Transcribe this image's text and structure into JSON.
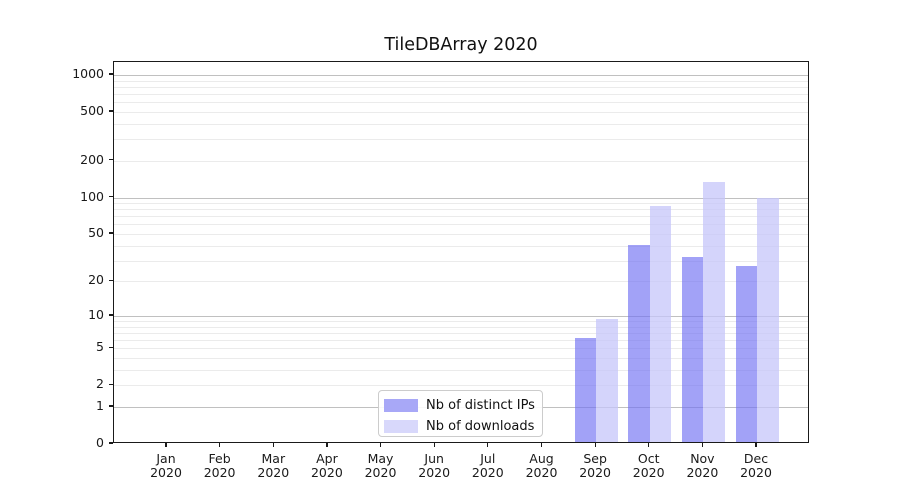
{
  "figure": {
    "title": "TileDBArray 2020"
  },
  "chart_data": {
    "type": "bar",
    "title": "TileDBArray 2020",
    "xlabel": "",
    "ylabel": "",
    "categories": [
      "Jan",
      "Feb",
      "Mar",
      "Apr",
      "May",
      "Jun",
      "Jul",
      "Aug",
      "Sep",
      "Oct",
      "Nov",
      "Dec"
    ],
    "category_year": "2020",
    "series": [
      {
        "name": "Nb of distinct IPs",
        "color_solid": "#a8a8f7",
        "color_rgba": "rgba(112,112,243,0.65)",
        "values": [
          0,
          0,
          0,
          0,
          0,
          0,
          0,
          0,
          6,
          39,
          31,
          26
        ]
      },
      {
        "name": "Nb of downloads",
        "color_solid": "#d8d8fb",
        "color_rgba": "rgba(198,198,250,0.75)",
        "values": [
          0,
          0,
          0,
          0,
          0,
          0,
          0,
          0,
          9,
          82,
          129,
          95
        ]
      }
    ],
    "yscale": "log1p",
    "ylim": [
      0,
      1276
    ],
    "yticks": [
      0,
      1,
      2,
      5,
      10,
      20,
      50,
      100,
      200,
      500,
      1000
    ],
    "grid": {
      "orientation": "horizontal",
      "major_lines": [
        1,
        10,
        100,
        1000
      ],
      "minor_base": [
        2,
        3,
        4,
        5,
        6,
        7,
        8,
        9
      ],
      "minor_decades": [
        1,
        10,
        100
      ]
    },
    "legend": {
      "position": "lower-center-left",
      "entries": [
        "Nb of distinct IPs",
        "Nb of downloads"
      ]
    }
  }
}
